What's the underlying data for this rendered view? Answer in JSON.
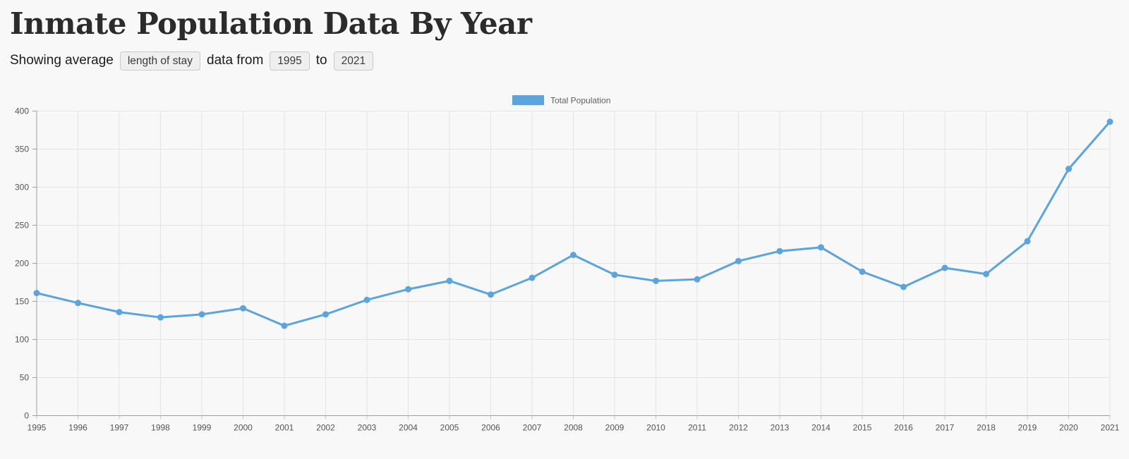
{
  "page": {
    "title": "Inmate Population Data By Year",
    "subtitle_prefix": "Showing average",
    "subtitle_middle": "data from",
    "subtitle_to": "to",
    "metric_select_value": "length of stay",
    "start_year_select_value": "1995",
    "end_year_select_value": "2021"
  },
  "colors": {
    "accent_line": "#5ca4db",
    "page_background": "#f8f8f8",
    "grid_line": "#e4e4e4",
    "axis_line": "#9e9e9e",
    "x_tick_mark": "#c4c4c4",
    "axis_text": "#545454",
    "legend_text": "#5e5e5e",
    "title_text": "#2b2b2b"
  },
  "chart_data": {
    "type": "line",
    "title": "",
    "xlabel": "",
    "ylabel": "",
    "legend_position": "top-center",
    "grid": true,
    "ylim": [
      0,
      400
    ],
    "yticks": [
      0,
      50,
      100,
      150,
      200,
      250,
      300,
      350,
      400
    ],
    "categories": [
      "1995",
      "1996",
      "1997",
      "1998",
      "1999",
      "2000",
      "2001",
      "2002",
      "2003",
      "2004",
      "2005",
      "2006",
      "2007",
      "2008",
      "2009",
      "2010",
      "2011",
      "2012",
      "2013",
      "2014",
      "2015",
      "2016",
      "2017",
      "2018",
      "2019",
      "2020",
      "2021"
    ],
    "series": [
      {
        "name": "Total Population",
        "color": "#5ca4db",
        "values": [
          161,
          148,
          136,
          129,
          133,
          141,
          118,
          133,
          152,
          166,
          177,
          159,
          181,
          211,
          185,
          177,
          179,
          203,
          216,
          221,
          189,
          169,
          194,
          186,
          229,
          324,
          386
        ]
      }
    ]
  }
}
